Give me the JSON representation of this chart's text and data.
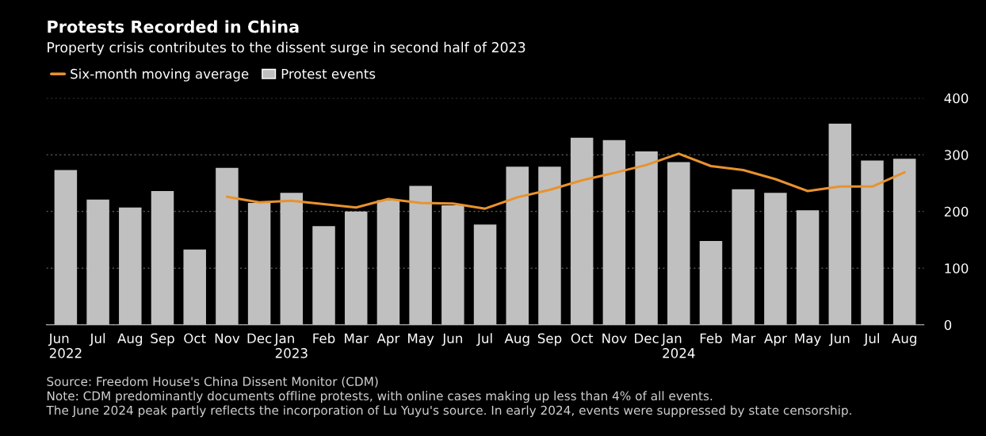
{
  "chart_data": {
    "type": "bar",
    "title": "Protests Recorded in China",
    "subtitle": "Property crisis contributes to the dissent surge in second half of 2023",
    "categories": [
      "Jun\n2022",
      "Jul",
      "Aug",
      "Sep",
      "Oct",
      "Nov",
      "Dec",
      "Jan\n2023",
      "Feb",
      "Mar",
      "Apr",
      "May",
      "Jun",
      "Jul",
      "Aug",
      "Sep",
      "Oct",
      "Nov",
      "Dec",
      "Jan\n2024",
      "Feb",
      "Mar",
      "Apr",
      "May",
      "Jun",
      "Jul",
      "Aug"
    ],
    "series": [
      {
        "name": "Protest events",
        "color": "#c0c0c0",
        "values": [
          273,
          221,
          207,
          236,
          133,
          277,
          215,
          233,
          174,
          200,
          220,
          245,
          211,
          177,
          279,
          279,
          330,
          326,
          306,
          287,
          148,
          239,
          233,
          202,
          355,
          290,
          293
        ]
      },
      {
        "name": "Six-month moving average",
        "type": "line",
        "color": "#e8922e",
        "values": [
          null,
          null,
          null,
          null,
          null,
          226,
          216,
          219,
          213,
          207,
          222,
          215,
          214,
          205,
          225,
          238,
          255,
          268,
          282,
          302,
          280,
          273,
          257,
          236,
          244,
          244,
          269
        ]
      }
    ],
    "ylim": [
      0,
      400
    ],
    "yticks": [
      0,
      100,
      200,
      300,
      400
    ],
    "grid": "y",
    "legend": "top left",
    "annotations": [
      "Source: Freedom House's China Dissent Monitor (CDM)",
      "Note: CDM predominantly documents offline protests, with online cases making up less than 4% of all events.",
      "The June 2024 peak partly reflects the incorporation of Lu Yuyu's source. In early 2024, events were suppressed by state censorship."
    ]
  }
}
